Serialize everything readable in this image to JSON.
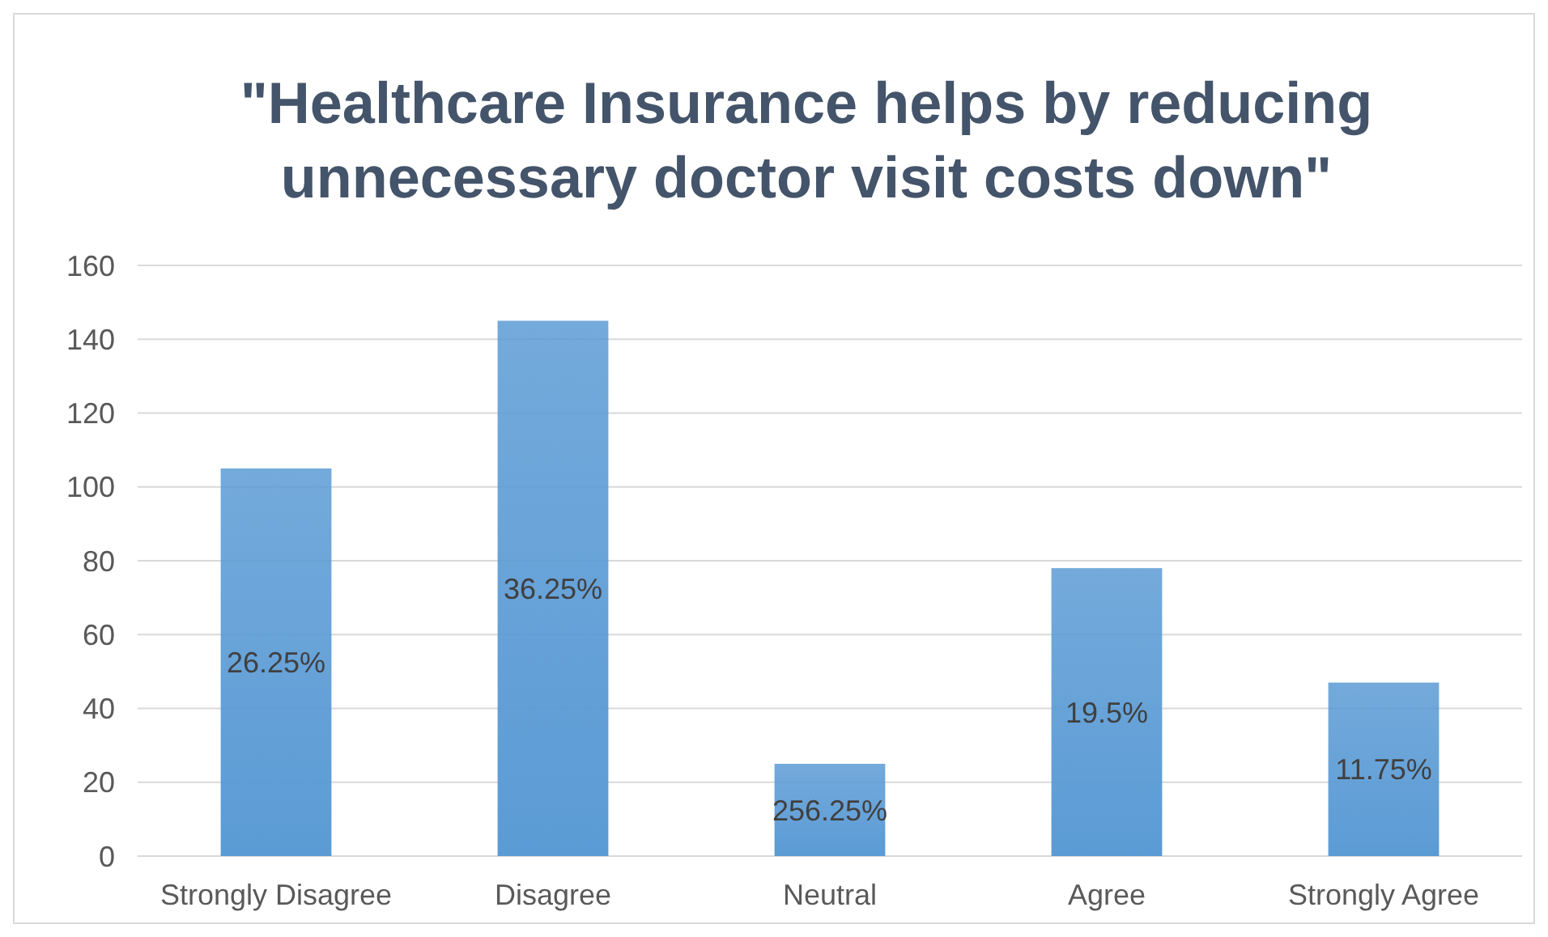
{
  "chart_data": {
    "type": "bar",
    "title": "\"Healthcare Insurance helps by reducing unnecessary doctor visit costs down\"",
    "categories": [
      "Strongly Disagree",
      "Disagree",
      "Neutral",
      "Agree",
      "Strongly Agree"
    ],
    "values": [
      105,
      145,
      25,
      78,
      47
    ],
    "color": "#5b9bd5",
    "ylim": [
      0,
      160
    ],
    "yticks": [
      0,
      20,
      40,
      60,
      80,
      100,
      120,
      140,
      160
    ],
    "grid": "y",
    "annotations": [
      "26.25%",
      "36.25%",
      "256.25%",
      "19.5%",
      "11.75%"
    ]
  }
}
